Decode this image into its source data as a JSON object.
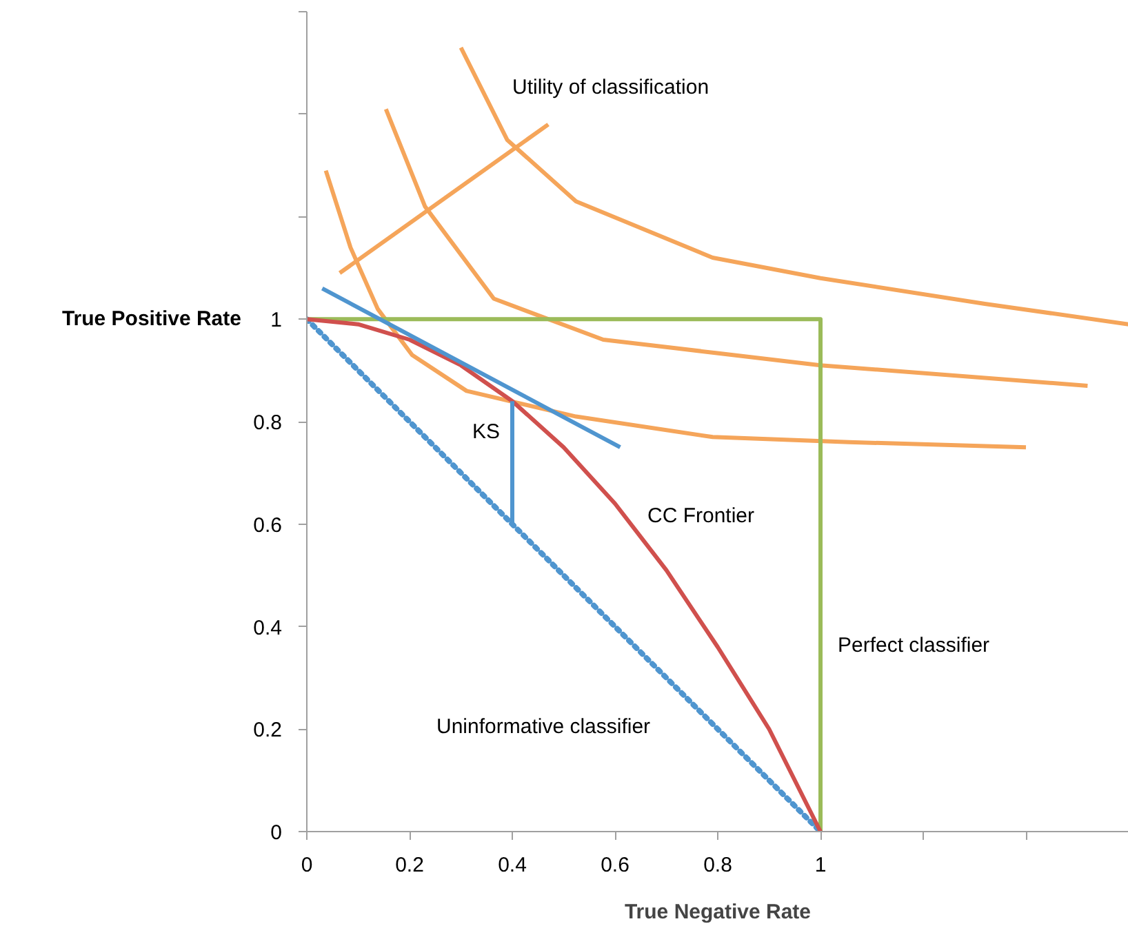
{
  "chart_data": {
    "type": "line",
    "xlabel": "True Negative Rate",
    "ylabel": "True Positive Rate",
    "xlim": [
      0,
      1.6
    ],
    "ylim": [
      0,
      1.6
    ],
    "xticks": [
      0,
      0.2,
      0.4,
      0.6,
      0.8,
      1,
      {
        "value": 1.2,
        "label": null
      },
      {
        "value": 1.4,
        "label": null
      },
      {
        "value": 1.6,
        "label": null
      }
    ],
    "yticks": [
      0,
      0.2,
      0.4,
      0.6,
      0.8,
      1,
      {
        "value": 1.2,
        "label": null
      },
      {
        "value": 1.4,
        "label": null
      },
      {
        "value": 1.6,
        "label": null
      }
    ],
    "series": [
      {
        "color": "#f5a55a",
        "x": [
          0.037,
          0.085,
          0.138,
          0.205,
          0.311,
          0.524,
          0.79,
          1.056,
          1.4
        ],
        "values": [
          1.29,
          1.14,
          1.02,
          0.93,
          0.86,
          0.81,
          0.77,
          0.76,
          0.75
        ]
      },
      {
        "color": "#f5a55a",
        "x": [
          0.154,
          0.23,
          0.364,
          0.577,
          1.0,
          1.52
        ],
        "values": [
          1.41,
          1.22,
          1.04,
          0.96,
          0.91,
          0.87
        ]
      },
      {
        "color": "#f5a55a",
        "x": [
          0.3,
          0.39,
          0.524,
          0.79,
          1.0,
          1.32,
          1.6
        ],
        "values": [
          1.53,
          1.35,
          1.23,
          1.12,
          1.08,
          1.03,
          0.99
        ]
      },
      {
        "color": "#f5a55a",
        "x": [
          0.064,
          0.47
        ],
        "values": [
          1.09,
          1.38
        ]
      },
      {
        "color": "#9bbb59",
        "x": [
          0,
          1,
          1
        ],
        "values": [
          1,
          1,
          0
        ]
      },
      {
        "color": "#4f95cf",
        "x": [
          0,
          1
        ],
        "values": [
          1,
          0
        ],
        "line_style": "dotted"
      },
      {
        "color": "#d0504d",
        "x": [
          0,
          0.1,
          0.2,
          0.3,
          0.4,
          0.5,
          0.6,
          0.7,
          0.8,
          0.9,
          1
        ],
        "values": [
          1,
          0.99,
          0.96,
          0.91,
          0.84,
          0.75,
          0.64,
          0.51,
          0.36,
          0.2,
          0
        ]
      },
      {
        "color": "#4f95cf",
        "x": [
          0.03,
          0.61
        ],
        "values": [
          1.06,
          0.75
        ]
      },
      {
        "color": "#4f95cf",
        "x": [
          0.4,
          0.4
        ],
        "values": [
          0.6,
          0.84
        ]
      }
    ],
    "annotations": [
      "Utility of classification",
      "KS",
      "CC Frontier",
      "Perfect classifier",
      "Uninformative classifier"
    ]
  }
}
